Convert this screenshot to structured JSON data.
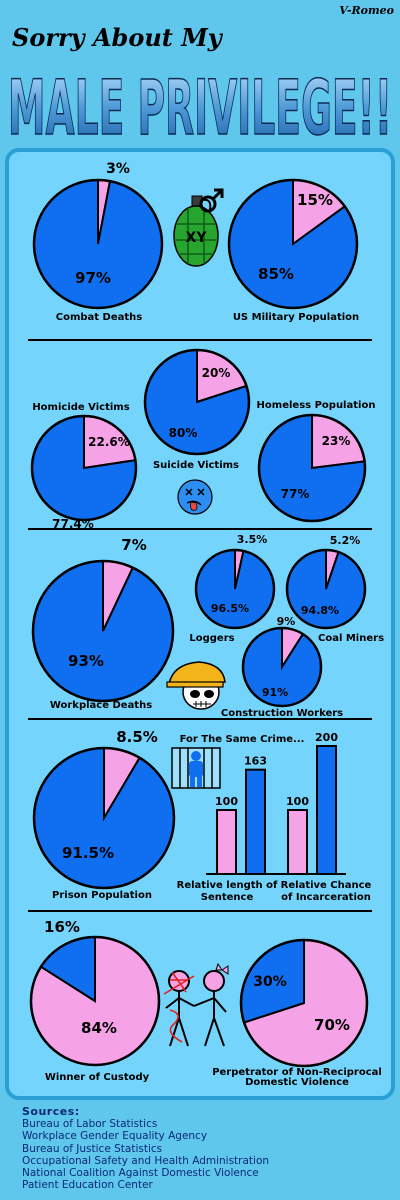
{
  "header": {
    "author": "V-Romeo",
    "subtitle": "Sorry About My",
    "title": "MALE PRIVILEGE!!"
  },
  "colors": {
    "background": "#5fc6ec",
    "panel": "#74d4fb",
    "male": "#0f6ff0",
    "female": "#f5a3e6",
    "outline": "#000000"
  },
  "chart_data": [
    {
      "type": "pie",
      "title": "Combat Deaths",
      "slices": [
        {
          "group": "male",
          "value": 97,
          "label": "97%"
        },
        {
          "group": "female",
          "value": 3,
          "label": "3%"
        }
      ]
    },
    {
      "type": "pie",
      "title": "US Military Population",
      "slices": [
        {
          "group": "male",
          "value": 85,
          "label": "85%"
        },
        {
          "group": "female",
          "value": 15,
          "label": "15%"
        }
      ]
    },
    {
      "type": "pie",
      "title": "Homicide Victims",
      "slices": [
        {
          "group": "male",
          "value": 77.4,
          "label": "77.4%"
        },
        {
          "group": "female",
          "value": 22.6,
          "label": "22.6%"
        }
      ]
    },
    {
      "type": "pie",
      "title": "Suicide Victims",
      "slices": [
        {
          "group": "male",
          "value": 80,
          "label": "80%"
        },
        {
          "group": "female",
          "value": 20,
          "label": "20%"
        }
      ]
    },
    {
      "type": "pie",
      "title": "Homeless Population",
      "slices": [
        {
          "group": "male",
          "value": 77,
          "label": "77%"
        },
        {
          "group": "female",
          "value": 23,
          "label": "23%"
        }
      ]
    },
    {
      "type": "pie",
      "title": "Workplace Deaths",
      "slices": [
        {
          "group": "male",
          "value": 93,
          "label": "93%"
        },
        {
          "group": "female",
          "value": 7,
          "label": "7%"
        }
      ]
    },
    {
      "type": "pie",
      "title": "Loggers",
      "slices": [
        {
          "group": "male",
          "value": 96.5,
          "label": "96.5%"
        },
        {
          "group": "female",
          "value": 3.5,
          "label": "3.5%"
        }
      ]
    },
    {
      "type": "pie",
      "title": "Coal Miners",
      "slices": [
        {
          "group": "male",
          "value": 94.8,
          "label": "94.8%"
        },
        {
          "group": "female",
          "value": 5.2,
          "label": "5.2%"
        }
      ]
    },
    {
      "type": "pie",
      "title": "Construction Workers",
      "slices": [
        {
          "group": "male",
          "value": 91,
          "label": "91%"
        },
        {
          "group": "female",
          "value": 9,
          "label": "9%"
        }
      ]
    },
    {
      "type": "pie",
      "title": "Prison Population",
      "slices": [
        {
          "group": "male",
          "value": 91.5,
          "label": "91.5%"
        },
        {
          "group": "female",
          "value": 8.5,
          "label": "8.5%"
        }
      ]
    },
    {
      "type": "bar",
      "title": "For The Same Crime...",
      "categories": [
        "Relative length of Sentence",
        "Relative Chance of Incarceration"
      ],
      "series": [
        {
          "group": "female",
          "values": [
            100,
            100
          ]
        },
        {
          "group": "male",
          "values": [
            163,
            200
          ]
        }
      ],
      "ylim": [
        0,
        200
      ]
    },
    {
      "type": "pie",
      "title": "Winner of Custody",
      "slices": [
        {
          "group": "female",
          "value": 84,
          "label": "84%"
        },
        {
          "group": "male",
          "value": 16,
          "label": "16%"
        }
      ]
    },
    {
      "type": "pie",
      "title": "Perpetrator of Non-Reciprocal Domestic Violence",
      "slices": [
        {
          "group": "female",
          "value": 70,
          "label": "70%"
        },
        {
          "group": "male",
          "value": 30,
          "label": "30%"
        }
      ]
    }
  ],
  "sources": {
    "heading": "Sources:",
    "items": [
      "Bureau of Labor Statistics",
      "Workplace Gender Equality Agency",
      "Bureau of Justice Statistics",
      "Occupational Safety and Health Administration",
      "National Coalition Against Domestic Violence",
      "Patient Education Center"
    ]
  },
  "icons": [
    "grenade-icon",
    "male-symbol-icon",
    "dead-face-icon",
    "hardhat-skull-icon",
    "prisoner-icon",
    "stick-couple-icon"
  ]
}
